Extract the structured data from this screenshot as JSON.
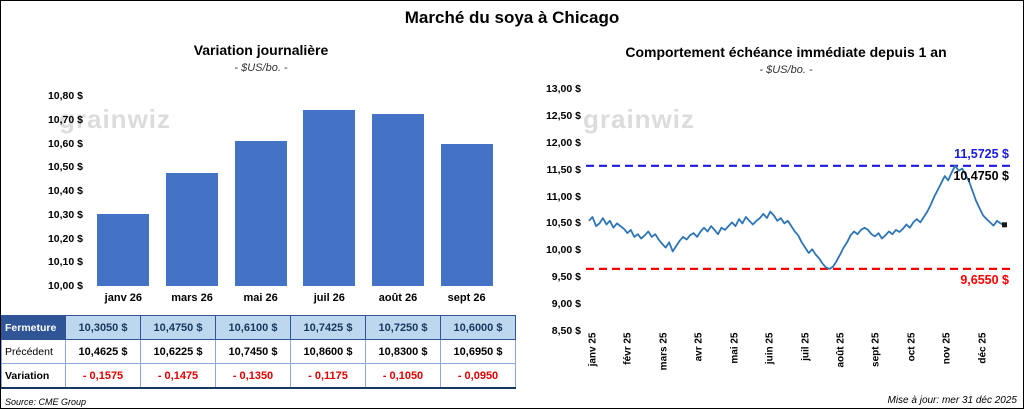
{
  "page": {
    "title": "Marché du soya à Chicago",
    "watermark": "grainwiz",
    "source": "Source: CME Group",
    "updated": "Mise à jour: mer 31 déc 2025"
  },
  "colors": {
    "bar_blue": "#4472C4",
    "table_header_blue": "#2F5597",
    "table_highlight_blue": "#BDD7EE",
    "negative_red": "#E10000",
    "line_blue": "#2E75B6",
    "max_line_blue": "#1A1AE0",
    "min_line_red": "#FF0000"
  },
  "chart_data": [
    {
      "type": "bar",
      "title": "Variation  journalière",
      "subtitle": "- $US/bo. -",
      "categories": [
        "janv 26",
        "mars 26",
        "mai 26",
        "juil 26",
        "août 26",
        "sept 26"
      ],
      "values": [
        10.305,
        10.475,
        10.61,
        10.7425,
        10.725,
        10.6
      ],
      "ylim": [
        10.0,
        10.8
      ],
      "ytick_step": 0.1,
      "bar_color": "#4472C4",
      "xlabel": "",
      "ylabel": ""
    },
    {
      "type": "line",
      "title": "Comportement  échéance  immédiate  depuis  1 an",
      "subtitle": "- $US/bo. -",
      "x_labels": [
        "janv 25",
        "févr 25",
        "mars 25",
        "avr 25",
        "mai 25",
        "juin 25",
        "juil 25",
        "août 25",
        "sept 25",
        "oct 25",
        "nov 25",
        "déc 25"
      ],
      "ylim": [
        8.5,
        13.0
      ],
      "ytick_step": 0.5,
      "line_color": "#2E75B6",
      "max_line": {
        "value": 11.5725,
        "label": "11,5725 $",
        "color": "#1A1AE0"
      },
      "min_line": {
        "value": 9.655,
        "label": "9,6550 $",
        "color": "#FF0000"
      },
      "last_label": {
        "value": 10.475,
        "label": "10,4750 $",
        "color": "#000000"
      },
      "values": [
        10.55,
        10.62,
        10.45,
        10.5,
        10.6,
        10.48,
        10.55,
        10.42,
        10.5,
        10.45,
        10.4,
        10.32,
        10.38,
        10.25,
        10.3,
        10.22,
        10.28,
        10.35,
        10.25,
        10.3,
        10.2,
        10.12,
        10.05,
        10.15,
        9.98,
        10.08,
        10.18,
        10.25,
        10.2,
        10.28,
        10.32,
        10.25,
        10.35,
        10.42,
        10.35,
        10.45,
        10.38,
        10.3,
        10.42,
        10.38,
        10.45,
        10.52,
        10.45,
        10.58,
        10.5,
        10.62,
        10.55,
        10.48,
        10.55,
        10.6,
        10.68,
        10.6,
        10.72,
        10.65,
        10.55,
        10.6,
        10.5,
        10.55,
        10.45,
        10.35,
        10.28,
        10.15,
        10.05,
        9.95,
        10.02,
        9.92,
        9.85,
        9.75,
        9.68,
        9.655,
        9.7,
        9.8,
        9.92,
        10.05,
        10.15,
        10.28,
        10.35,
        10.3,
        10.38,
        10.42,
        10.38,
        10.3,
        10.26,
        10.32,
        10.22,
        10.28,
        10.35,
        10.3,
        10.38,
        10.34,
        10.4,
        10.48,
        10.42,
        10.52,
        10.58,
        10.52,
        10.62,
        10.72,
        10.85,
        11.0,
        11.12,
        11.25,
        11.38,
        11.3,
        11.45,
        11.5725,
        11.48,
        11.52,
        11.4,
        11.28,
        11.1,
        10.92,
        10.78,
        10.65,
        10.58,
        10.52,
        10.46,
        10.55,
        10.5,
        10.475
      ]
    }
  ],
  "table": {
    "rows": [
      {
        "label": "Fermeture",
        "values": [
          "10,3050  $",
          "10,4750  $",
          "10,6100  $",
          "10,7425  $",
          "10,7250  $",
          "10,6000  $"
        ]
      },
      {
        "label": "Précédent",
        "values": [
          "10,4625  $",
          "10,6225  $",
          "10,7450  $",
          "10,8600  $",
          "10,8300  $",
          "10,6950  $"
        ]
      },
      {
        "label": "Variation",
        "values": [
          "- 0,1575",
          "- 0,1475",
          "- 0,1350",
          "- 0,1175",
          "- 0,1050",
          "- 0,0950"
        ]
      }
    ]
  }
}
